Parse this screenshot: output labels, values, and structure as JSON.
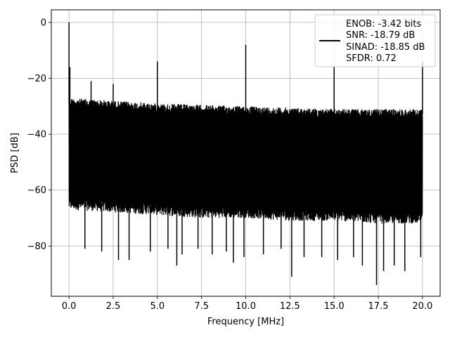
{
  "chart_data": {
    "type": "line",
    "title": "",
    "xlabel": "Frequency [MHz]",
    "ylabel": "PSD [dB]",
    "xlim": [
      -1.0,
      21.0
    ],
    "ylim": [
      -98.0,
      4.5
    ],
    "xticks": [
      0.0,
      2.5,
      5.0,
      7.5,
      10.0,
      12.5,
      15.0,
      17.5,
      20.0
    ],
    "xtick_labels": [
      "0.0",
      "2.5",
      "5.0",
      "7.5",
      "10.0",
      "12.5",
      "15.0",
      "17.5",
      "20.0"
    ],
    "yticks": [
      0,
      -20,
      -40,
      -60,
      -80
    ],
    "ytick_labels": [
      "0",
      "−20",
      "−40",
      "−60",
      "−80"
    ],
    "grid": true,
    "legend_position": "top-right",
    "color": "#000000",
    "legend_lines": [
      "ENOB: -3.42 bits",
      "SNR: -18.79 dB",
      "SINAD: -18.85 dB",
      "SFDR: 0.72"
    ],
    "series": [
      {
        "noise_floor": {
          "x": [
            0.0,
            2.5,
            5.0,
            7.5,
            10.0,
            12.5,
            15.0,
            17.5,
            20.0
          ],
          "upper": [
            -27,
            -28,
            -29,
            -29.5,
            -30,
            -30.5,
            -31,
            -31,
            -31
          ],
          "lower": [
            -67,
            -68,
            -69,
            -70,
            -70,
            -71,
            -71,
            -72,
            -72
          ]
        },
        "spikes": [
          {
            "x": 0.0,
            "y": 0.0
          },
          {
            "x": 0.05,
            "y": -16
          },
          {
            "x": 1.25,
            "y": -21
          },
          {
            "x": 2.5,
            "y": -22
          },
          {
            "x": 5.0,
            "y": -14
          },
          {
            "x": 10.0,
            "y": -8
          },
          {
            "x": 15.0,
            "y": -16
          },
          {
            "x": 20.0,
            "y": -14
          }
        ],
        "dips": [
          {
            "x": 0.9,
            "y": -81
          },
          {
            "x": 1.85,
            "y": -82
          },
          {
            "x": 2.8,
            "y": -85
          },
          {
            "x": 3.4,
            "y": -85
          },
          {
            "x": 4.6,
            "y": -82
          },
          {
            "x": 5.6,
            "y": -81
          },
          {
            "x": 6.1,
            "y": -87
          },
          {
            "x": 6.4,
            "y": -83
          },
          {
            "x": 7.3,
            "y": -81
          },
          {
            "x": 8.1,
            "y": -83
          },
          {
            "x": 8.9,
            "y": -82
          },
          {
            "x": 9.3,
            "y": -86
          },
          {
            "x": 9.9,
            "y": -84
          },
          {
            "x": 11.0,
            "y": -83
          },
          {
            "x": 12.0,
            "y": -81
          },
          {
            "x": 12.6,
            "y": -91
          },
          {
            "x": 13.3,
            "y": -84
          },
          {
            "x": 14.3,
            "y": -84
          },
          {
            "x": 15.2,
            "y": -85
          },
          {
            "x": 16.1,
            "y": -84
          },
          {
            "x": 16.6,
            "y": -87
          },
          {
            "x": 17.4,
            "y": -94
          },
          {
            "x": 17.8,
            "y": -89
          },
          {
            "x": 18.4,
            "y": -87
          },
          {
            "x": 19.0,
            "y": -89
          },
          {
            "x": 19.9,
            "y": -84
          }
        ]
      }
    ]
  }
}
